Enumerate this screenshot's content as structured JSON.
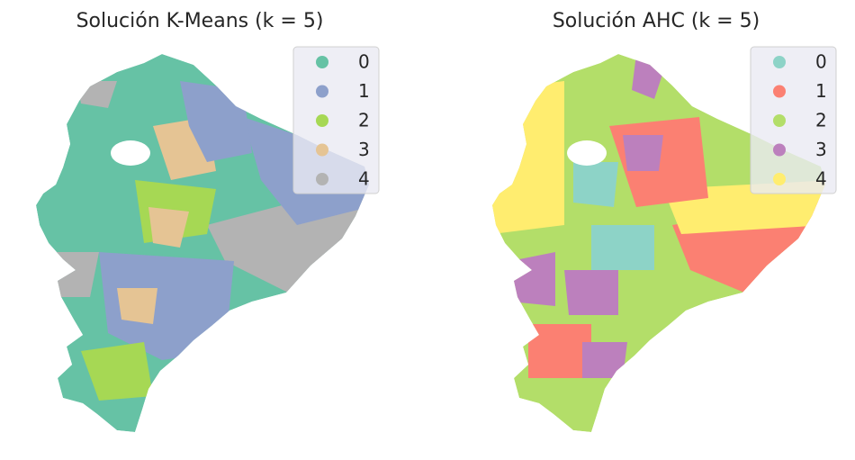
{
  "maps": [
    {
      "title": "Solución K-Means (k = 5)",
      "legend": [
        {
          "label": "0",
          "color": "#66c2a5"
        },
        {
          "label": "1",
          "color": "#8da0cb"
        },
        {
          "label": "2",
          "color": "#a6d854"
        },
        {
          "label": "3",
          "color": "#e5c494"
        },
        {
          "label": "4",
          "color": "#b3b3b3"
        }
      ]
    },
    {
      "title": "Solución AHC (k = 5)",
      "legend": [
        {
          "label": "0",
          "color": "#8dd3c7"
        },
        {
          "label": "1",
          "color": "#fb8072"
        },
        {
          "label": "2",
          "color": "#b3de69"
        },
        {
          "label": "3",
          "color": "#bc80bd"
        },
        {
          "label": "4",
          "color": "#ffed6f"
        }
      ]
    }
  ]
}
